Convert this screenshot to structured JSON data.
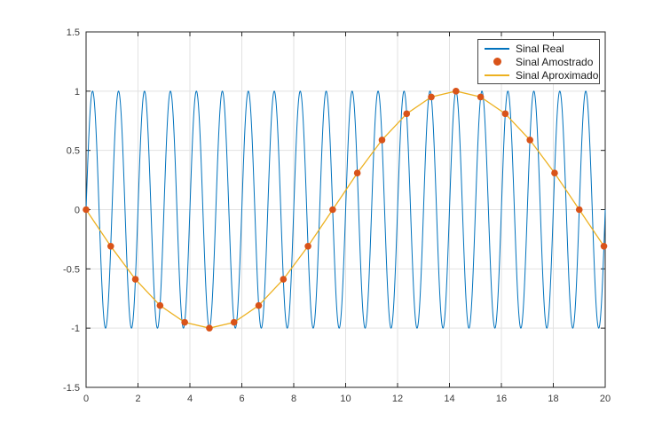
{
  "figure": {
    "background": "#ffffff",
    "axis_color": "#262626",
    "grid_color": "#e2e2e2",
    "tick_label_color": "#3c3c3c"
  },
  "chart_data": {
    "type": "line",
    "title": "",
    "xlabel": "",
    "ylabel": "",
    "xlim": [
      0,
      20
    ],
    "ylim": [
      -1.5,
      1.5
    ],
    "grid": true,
    "legend_position": "northeast",
    "xticks": [
      0,
      2,
      4,
      6,
      8,
      10,
      12,
      14,
      16,
      18,
      20
    ],
    "xtick_labels": [
      "0",
      "2",
      "4",
      "6",
      "8",
      "10",
      "12",
      "14",
      "16",
      "18",
      "20"
    ],
    "yticks": [
      -1.5,
      -1,
      -0.5,
      0,
      0.5,
      1,
      1.5
    ],
    "ytick_labels": [
      "-1.5",
      "-1",
      "-0.5",
      "0",
      "0.5",
      "1",
      "1.5"
    ],
    "series": [
      {
        "name": "Sinal Real",
        "type": "line",
        "color": "#0072BD",
        "signal": {
          "kind": "sine",
          "amplitude": 1,
          "frequency_hz": 1,
          "phase": 0,
          "t_start": 0,
          "t_end": 20
        }
      },
      {
        "name": "Sinal Amostrado",
        "type": "scatter",
        "color": "#D95319",
        "sampling_period": 0.95,
        "x": [
          0,
          0.95,
          1.9,
          2.85,
          3.8,
          4.75,
          5.7,
          6.65,
          7.6,
          8.55,
          9.5,
          10.45,
          11.4,
          12.35,
          13.3,
          14.25,
          15.2,
          16.15,
          17.1,
          18.05,
          19,
          19.95
        ],
        "y": [
          0,
          -0.309,
          -0.588,
          -0.809,
          -0.951,
          -1,
          -0.951,
          -0.809,
          -0.588,
          -0.309,
          0,
          0.309,
          0.588,
          0.809,
          0.951,
          1,
          0.951,
          0.809,
          0.588,
          0.309,
          0,
          -0.309
        ]
      },
      {
        "name": "Sinal Aproximado",
        "type": "line",
        "color": "#EDB120",
        "x": [
          0,
          0.95,
          1.9,
          2.85,
          3.8,
          4.75,
          5.7,
          6.65,
          7.6,
          8.55,
          9.5,
          10.45,
          11.4,
          12.35,
          13.3,
          14.25,
          15.2,
          16.15,
          17.1,
          18.05,
          19,
          19.95
        ],
        "y": [
          0,
          -0.309,
          -0.588,
          -0.809,
          -0.951,
          -1,
          -0.951,
          -0.809,
          -0.588,
          -0.309,
          0,
          0.309,
          0.588,
          0.809,
          0.951,
          1,
          0.951,
          0.809,
          0.588,
          0.309,
          0,
          -0.309
        ]
      }
    ]
  }
}
